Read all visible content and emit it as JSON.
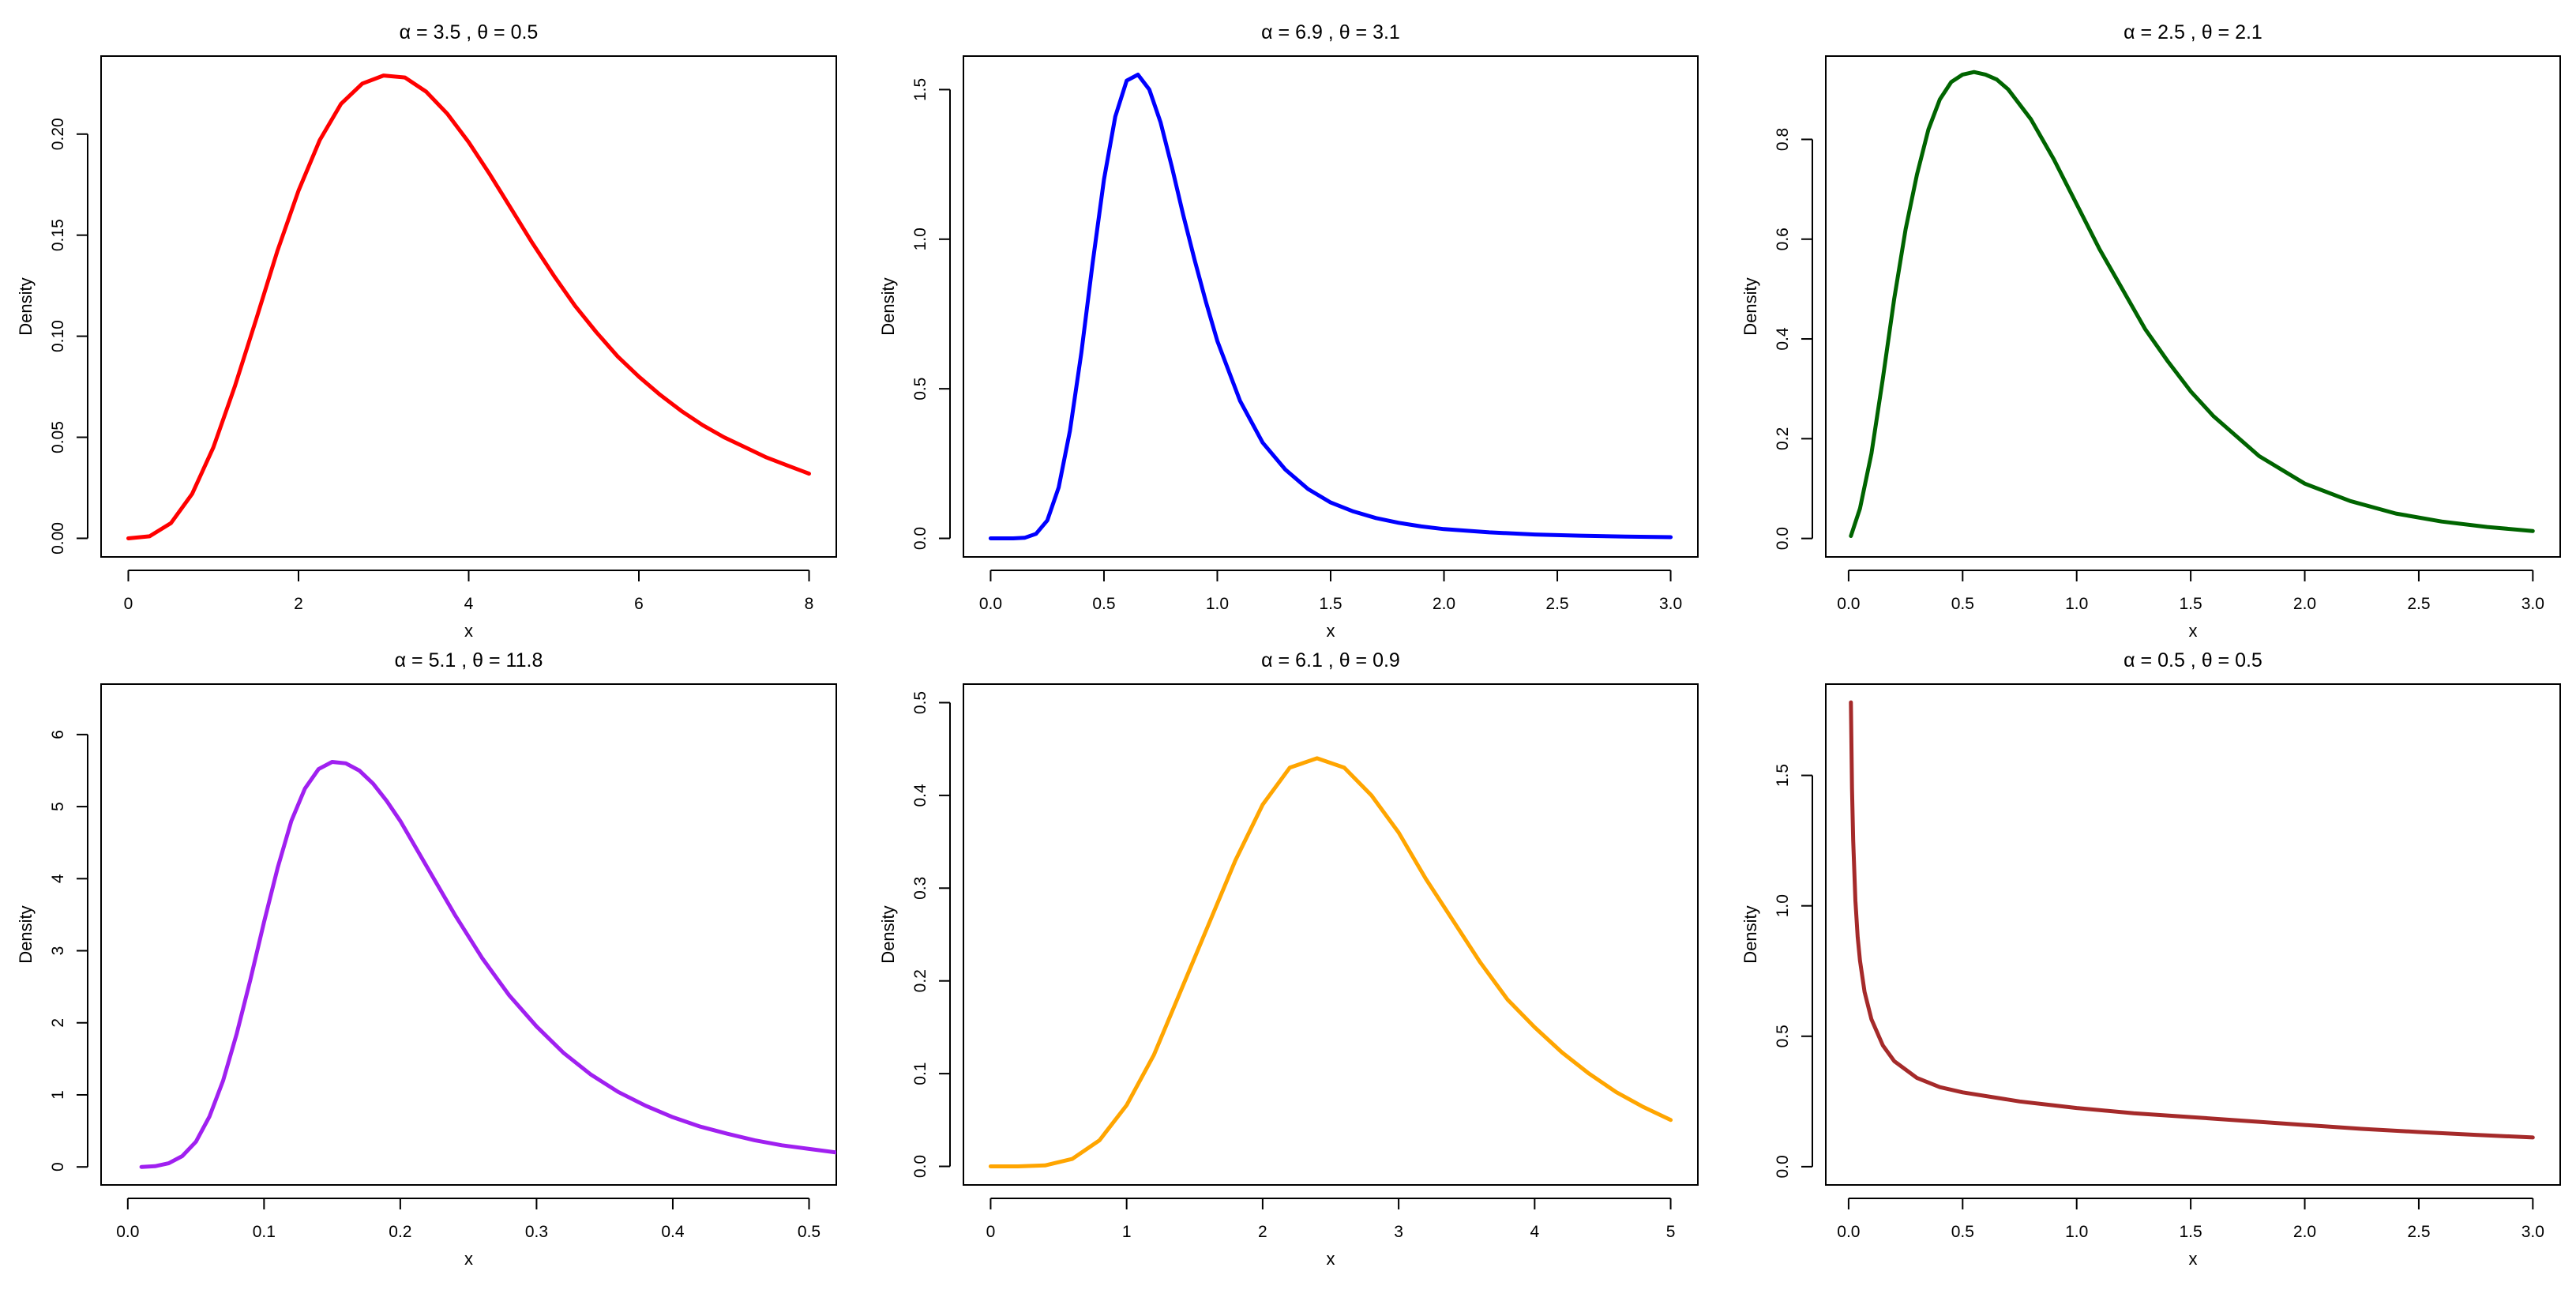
{
  "figure": {
    "layout": "2 rows x 3 columns"
  },
  "chart_data": [
    {
      "type": "line",
      "title": "α = 3.5 ,  θ = 0.5",
      "xlabel": "x",
      "ylabel": "Density",
      "xlim": [
        -0.32,
        8.32
      ],
      "ylim": [
        -0.0092,
        0.2386
      ],
      "xticks": [
        0,
        2,
        4,
        6,
        8
      ],
      "xtick_labels": [
        "0",
        "2",
        "4",
        "6",
        "8"
      ],
      "yticks": [
        0,
        0.05,
        0.1,
        0.15,
        0.2
      ],
      "ytick_labels": [
        "0.00",
        "0.05",
        "0.10",
        "0.15",
        "0.20"
      ],
      "grid": false,
      "color": "#ff0000",
      "series": [
        {
          "x": [
            0,
            0.25,
            0.5,
            0.75,
            1,
            1.25,
            1.5,
            1.75,
            2,
            2.25,
            2.5,
            2.75,
            3,
            3.25,
            3.5,
            3.75,
            4,
            4.25,
            4.5,
            4.75,
            5,
            5.25,
            5.5,
            5.75,
            6,
            6.25,
            6.5,
            6.75,
            7,
            7.25,
            7.5,
            7.75,
            8
          ],
          "y": [
            0,
            0.001,
            0.0075,
            0.022,
            0.045,
            0.075,
            0.108,
            0.142,
            0.172,
            0.197,
            0.215,
            0.225,
            0.229,
            0.228,
            0.221,
            0.21,
            0.196,
            0.18,
            0.163,
            0.146,
            0.13,
            0.115,
            0.102,
            0.09,
            0.08,
            0.071,
            0.063,
            0.056,
            0.05,
            0.045,
            0.04,
            0.036,
            0.032
          ]
        }
      ]
    },
    {
      "type": "line",
      "title": "α = 6.9 ,  θ = 3.1",
      "xlabel": "x",
      "ylabel": "Density",
      "xlim": [
        -0.12,
        3.12
      ],
      "ylim": [
        -0.062,
        1.612
      ],
      "xticks": [
        0,
        0.5,
        1,
        1.5,
        2,
        2.5,
        3
      ],
      "xtick_labels": [
        "0.0",
        "0.5",
        "1.0",
        "1.5",
        "2.0",
        "2.5",
        "3.0"
      ],
      "yticks": [
        0,
        0.5,
        1,
        1.5
      ],
      "ytick_labels": [
        "0.0",
        "0.5",
        "1.0",
        "1.5"
      ],
      "grid": false,
      "color": "#0000ff",
      "series": [
        {
          "x": [
            0,
            0.1,
            0.15,
            0.2,
            0.25,
            0.3,
            0.35,
            0.4,
            0.45,
            0.5,
            0.55,
            0.6,
            0.65,
            0.7,
            0.75,
            0.8,
            0.85,
            0.9,
            0.95,
            1,
            1.1,
            1.2,
            1.3,
            1.4,
            1.5,
            1.6,
            1.7,
            1.8,
            1.9,
            2,
            2.2,
            2.4,
            2.6,
            2.8,
            3
          ],
          "y": [
            0,
            0,
            0.002,
            0.015,
            0.06,
            0.17,
            0.36,
            0.62,
            0.92,
            1.2,
            1.41,
            1.53,
            1.55,
            1.5,
            1.39,
            1.24,
            1.08,
            0.93,
            0.79,
            0.66,
            0.46,
            0.32,
            0.23,
            0.165,
            0.12,
            0.09,
            0.068,
            0.052,
            0.04,
            0.031,
            0.02,
            0.013,
            0.009,
            0.006,
            0.004
          ]
        }
      ]
    },
    {
      "type": "line",
      "title": "α = 2.5 ,  θ = 2.1",
      "xlabel": "x",
      "ylabel": "Density",
      "xlim": [
        -0.1,
        3.12
      ],
      "ylim": [
        -0.037,
        0.967
      ],
      "xticks": [
        0,
        0.5,
        1,
        1.5,
        2,
        2.5,
        3
      ],
      "xtick_labels": [
        "0.0",
        "0.5",
        "1.0",
        "1.5",
        "2.0",
        "2.5",
        "3.0"
      ],
      "yticks": [
        0,
        0.2,
        0.4,
        0.6,
        0.8
      ],
      "ytick_labels": [
        "0.0",
        "0.2",
        "0.4",
        "0.6",
        "0.8"
      ],
      "grid": false,
      "color": "#006400",
      "series": [
        {
          "x": [
            0.01,
            0.05,
            0.1,
            0.15,
            0.2,
            0.25,
            0.3,
            0.35,
            0.4,
            0.45,
            0.5,
            0.55,
            0.6,
            0.65,
            0.7,
            0.8,
            0.9,
            1,
            1.1,
            1.2,
            1.3,
            1.4,
            1.5,
            1.6,
            1.8,
            2,
            2.2,
            2.4,
            2.6,
            2.8,
            3
          ],
          "y": [
            0.005,
            0.06,
            0.17,
            0.32,
            0.48,
            0.62,
            0.73,
            0.82,
            0.88,
            0.915,
            0.93,
            0.935,
            0.93,
            0.92,
            0.9,
            0.84,
            0.76,
            0.67,
            0.58,
            0.5,
            0.42,
            0.355,
            0.295,
            0.245,
            0.165,
            0.11,
            0.075,
            0.05,
            0.034,
            0.023,
            0.015
          ]
        }
      ]
    },
    {
      "type": "line",
      "title": "α = 5.1 ,  θ = 11.8",
      "xlabel": "x",
      "ylabel": "Density",
      "xlim": [
        -0.0196,
        0.52
      ],
      "ylim": [
        -0.25,
        6.7
      ],
      "xticks": [
        0,
        0.1,
        0.2,
        0.3,
        0.4,
        0.5
      ],
      "xtick_labels": [
        "0.0",
        "0.1",
        "0.2",
        "0.3",
        "0.4",
        "0.5"
      ],
      "yticks": [
        0,
        1,
        2,
        3,
        4,
        5,
        6
      ],
      "ytick_labels": [
        "0",
        "1",
        "2",
        "3",
        "4",
        "5",
        "6"
      ],
      "grid": false,
      "color": "#a020f0",
      "series": [
        {
          "x": [
            0.01,
            0.02,
            0.03,
            0.04,
            0.05,
            0.06,
            0.07,
            0.08,
            0.09,
            0.1,
            0.11,
            0.12,
            0.13,
            0.14,
            0.15,
            0.16,
            0.17,
            0.18,
            0.19,
            0.2,
            0.22,
            0.24,
            0.26,
            0.28,
            0.3,
            0.32,
            0.34,
            0.36,
            0.38,
            0.4,
            0.42,
            0.44,
            0.46,
            0.48,
            0.5,
            0.52
          ],
          "y": [
            0,
            0.01,
            0.05,
            0.15,
            0.35,
            0.7,
            1.2,
            1.85,
            2.6,
            3.4,
            4.15,
            4.8,
            5.25,
            5.52,
            5.62,
            5.6,
            5.5,
            5.32,
            5.08,
            4.8,
            4.15,
            3.5,
            2.9,
            2.38,
            1.95,
            1.58,
            1.28,
            1.04,
            0.85,
            0.69,
            0.56,
            0.46,
            0.37,
            0.3,
            0.25,
            0.2
          ]
        }
      ]
    },
    {
      "type": "line",
      "title": "α = 6.1 ,  θ = 0.9",
      "xlabel": "x",
      "ylabel": "Density",
      "xlim": [
        -0.2,
        5.2
      ],
      "ylim": [
        -0.02,
        0.52
      ],
      "xticks": [
        0,
        1,
        2,
        3,
        4,
        5
      ],
      "xtick_labels": [
        "0",
        "1",
        "2",
        "3",
        "4",
        "5"
      ],
      "yticks": [
        0,
        0.1,
        0.2,
        0.3,
        0.4,
        0.5
      ],
      "ytick_labels": [
        "0.0",
        "0.1",
        "0.2",
        "0.3",
        "0.4",
        "0.5"
      ],
      "grid": false,
      "color": "#ffa500",
      "series": [
        {
          "x": [
            0,
            0.2,
            0.4,
            0.6,
            0.8,
            1,
            1.2,
            1.4,
            1.6,
            1.8,
            2,
            2.2,
            2.4,
            2.6,
            2.8,
            3,
            3.2,
            3.4,
            3.6,
            3.8,
            4,
            4.2,
            4.4,
            4.6,
            4.8,
            5
          ],
          "y": [
            0,
            0,
            0.001,
            0.008,
            0.028,
            0.066,
            0.12,
            0.19,
            0.26,
            0.33,
            0.39,
            0.43,
            0.44,
            0.43,
            0.4,
            0.36,
            0.31,
            0.265,
            0.22,
            0.18,
            0.15,
            0.123,
            0.1,
            0.08,
            0.064,
            0.05
          ]
        }
      ]
    },
    {
      "type": "line",
      "title": "α = 0.5 ,  θ = 0.5",
      "xlabel": "x",
      "ylabel": "Density",
      "xlim": [
        -0.1,
        3.12
      ],
      "ylim": [
        -0.07,
        1.85
      ],
      "xticks": [
        0,
        0.5,
        1,
        1.5,
        2,
        2.5,
        3
      ],
      "xtick_labels": [
        "0.0",
        "0.5",
        "1.0",
        "1.5",
        "2.0",
        "2.5",
        "3.0"
      ],
      "yticks": [
        0,
        0.5,
        1,
        1.5
      ],
      "ytick_labels": [
        "0.0",
        "0.5",
        "1.0",
        "1.5"
      ],
      "grid": false,
      "color": "#a52a2a",
      "series": [
        {
          "x": [
            0.01,
            0.015,
            0.02,
            0.03,
            0.04,
            0.05,
            0.07,
            0.1,
            0.15,
            0.2,
            0.3,
            0.4,
            0.5,
            0.75,
            1,
            1.25,
            1.5,
            1.75,
            2,
            2.25,
            2.5,
            2.75,
            3
          ],
          "y": [
            1.78,
            1.45,
            1.25,
            1.02,
            0.88,
            0.79,
            0.67,
            0.565,
            0.465,
            0.405,
            0.34,
            0.305,
            0.285,
            0.25,
            0.225,
            0.205,
            0.19,
            0.175,
            0.16,
            0.145,
            0.133,
            0.122,
            0.112
          ]
        }
      ]
    }
  ]
}
